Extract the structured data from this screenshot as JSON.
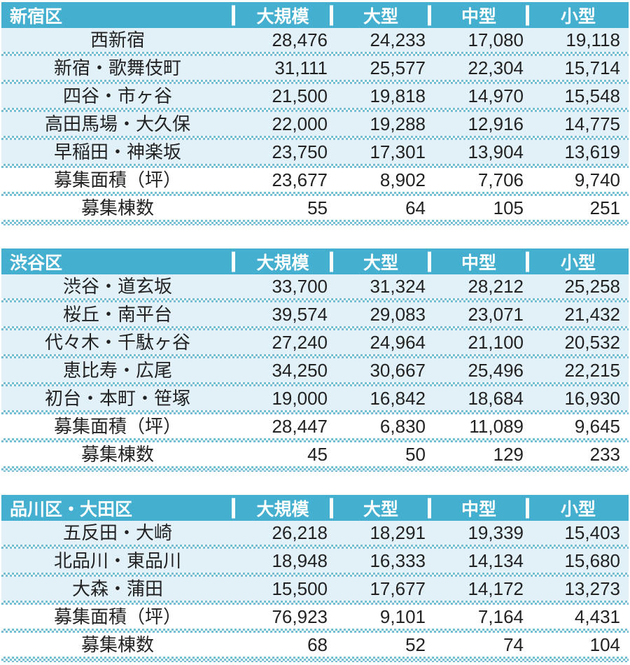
{
  "colors": {
    "header_bg": "#45AFD0",
    "row_alt_bg": "#E2F1F8",
    "separator_dot": "#77BFD9",
    "text": "#222222",
    "header_text": "#FFFFFF",
    "page_bg": "#FFFFFF"
  },
  "chart_data": [
    {
      "type": "table",
      "title": "新宿区",
      "columns": [
        "大規模",
        "大型",
        "中型",
        "小型"
      ],
      "rows": [
        {
          "label": "西新宿",
          "values": [
            "28,476",
            "24,233",
            "17,080",
            "19,118"
          ]
        },
        {
          "label": "新宿・歌舞伎町",
          "values": [
            "31,111",
            "25,577",
            "22,304",
            "15,714"
          ]
        },
        {
          "label": "四谷・市ヶ谷",
          "values": [
            "21,500",
            "19,818",
            "14,970",
            "15,548"
          ]
        },
        {
          "label": "高田馬場・大久保",
          "values": [
            "22,000",
            "19,288",
            "12,916",
            "14,775"
          ]
        },
        {
          "label": "早稲田・神楽坂",
          "values": [
            "23,750",
            "17,301",
            "13,904",
            "13,619"
          ]
        },
        {
          "label": "募集面積（坪）",
          "values": [
            "23,677",
            "8,902",
            "7,706",
            "9,740"
          ]
        },
        {
          "label": "募集棟数",
          "values": [
            "55",
            "64",
            "105",
            "251"
          ]
        }
      ]
    },
    {
      "type": "table",
      "title": "渋谷区",
      "columns": [
        "大規模",
        "大型",
        "中型",
        "小型"
      ],
      "rows": [
        {
          "label": "渋谷・道玄坂",
          "values": [
            "33,700",
            "31,324",
            "28,212",
            "25,258"
          ]
        },
        {
          "label": "桜丘・南平台",
          "values": [
            "39,574",
            "29,083",
            "23,071",
            "21,432"
          ]
        },
        {
          "label": "代々木・千駄ヶ谷",
          "values": [
            "27,240",
            "24,964",
            "21,100",
            "20,532"
          ]
        },
        {
          "label": "恵比寿・広尾",
          "values": [
            "34,250",
            "30,667",
            "25,496",
            "22,215"
          ]
        },
        {
          "label": "初台・本町・笹塚",
          "values": [
            "19,000",
            "16,842",
            "18,684",
            "16,930"
          ]
        },
        {
          "label": "募集面積（坪）",
          "values": [
            "28,447",
            "6,830",
            "11,089",
            "9,645"
          ]
        },
        {
          "label": "募集棟数",
          "values": [
            "45",
            "50",
            "129",
            "233"
          ]
        }
      ]
    },
    {
      "type": "table",
      "title": "品川区・大田区",
      "columns": [
        "大規模",
        "大型",
        "中型",
        "小型"
      ],
      "rows": [
        {
          "label": "五反田・大崎",
          "values": [
            "26,218",
            "18,291",
            "19,339",
            "15,403"
          ]
        },
        {
          "label": "北品川・東品川",
          "values": [
            "18,948",
            "16,333",
            "14,134",
            "15,680"
          ]
        },
        {
          "label": "大森・蒲田",
          "values": [
            "15,500",
            "17,677",
            "14,172",
            "13,273"
          ]
        },
        {
          "label": "募集面積（坪）",
          "values": [
            "76,923",
            "9,101",
            "7,164",
            "4,431"
          ]
        },
        {
          "label": "募集棟数",
          "values": [
            "68",
            "52",
            "74",
            "104"
          ]
        }
      ]
    }
  ]
}
